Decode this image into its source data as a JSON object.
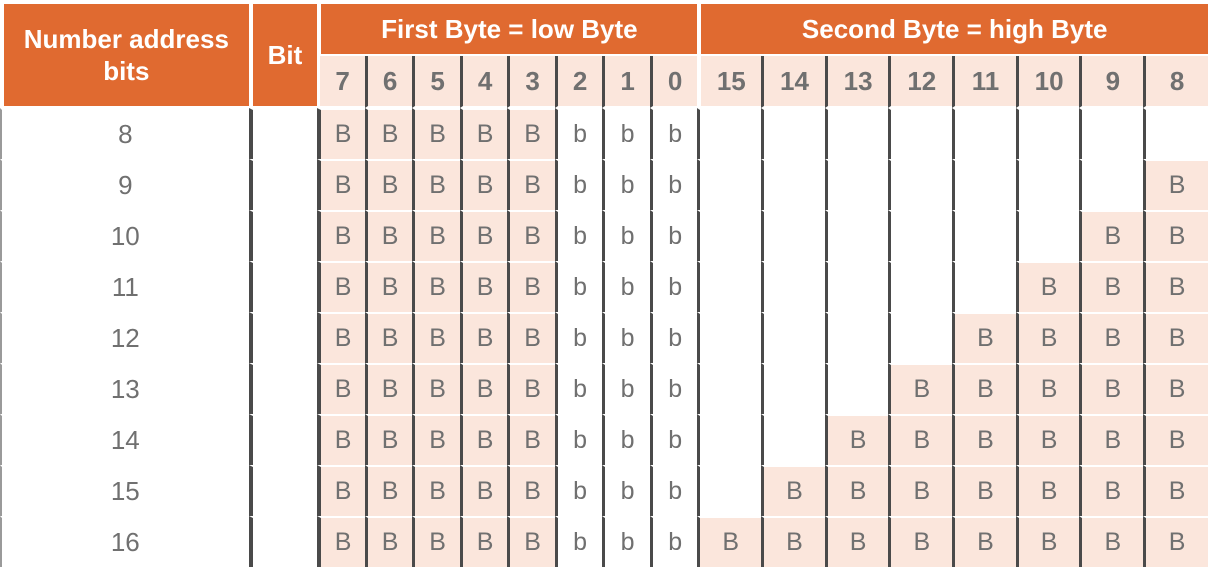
{
  "header": {
    "number_label": "Number address bits",
    "bit_label": "Bit",
    "first_byte": "First Byte = low Byte",
    "second_byte": "Second Byte = high Byte"
  },
  "bit_numbers": [
    "7",
    "6",
    "5",
    "4",
    "3",
    "2",
    "1",
    "0",
    "15",
    "14",
    "13",
    "12",
    "11",
    "10",
    "9",
    "8"
  ],
  "rows": [
    {
      "n": "8",
      "cells": [
        "B",
        "B",
        "B",
        "B",
        "B",
        "b",
        "b",
        "b",
        "",
        "",
        "",
        "",
        "",
        "",
        "",
        ""
      ]
    },
    {
      "n": "9",
      "cells": [
        "B",
        "B",
        "B",
        "B",
        "B",
        "b",
        "b",
        "b",
        "",
        "",
        "",
        "",
        "",
        "",
        "",
        "B"
      ]
    },
    {
      "n": "10",
      "cells": [
        "B",
        "B",
        "B",
        "B",
        "B",
        "b",
        "b",
        "b",
        "",
        "",
        "",
        "",
        "",
        "",
        "B",
        "B"
      ]
    },
    {
      "n": "11",
      "cells": [
        "B",
        "B",
        "B",
        "B",
        "B",
        "b",
        "b",
        "b",
        "",
        "",
        "",
        "",
        "",
        "B",
        "B",
        "B"
      ]
    },
    {
      "n": "12",
      "cells": [
        "B",
        "B",
        "B",
        "B",
        "B",
        "b",
        "b",
        "b",
        "",
        "",
        "",
        "",
        "B",
        "B",
        "B",
        "B"
      ]
    },
    {
      "n": "13",
      "cells": [
        "B",
        "B",
        "B",
        "B",
        "B",
        "b",
        "b",
        "b",
        "",
        "",
        "",
        "B",
        "B",
        "B",
        "B",
        "B"
      ]
    },
    {
      "n": "14",
      "cells": [
        "B",
        "B",
        "B",
        "B",
        "B",
        "b",
        "b",
        "b",
        "",
        "",
        "B",
        "B",
        "B",
        "B",
        "B",
        "B"
      ]
    },
    {
      "n": "15",
      "cells": [
        "B",
        "B",
        "B",
        "B",
        "B",
        "b",
        "b",
        "b",
        "",
        "B",
        "B",
        "B",
        "B",
        "B",
        "B",
        "B"
      ]
    },
    {
      "n": "16",
      "cells": [
        "B",
        "B",
        "B",
        "B",
        "B",
        "b",
        "b",
        "b",
        "B",
        "B",
        "B",
        "B",
        "B",
        "B",
        "B",
        "B"
      ]
    }
  ],
  "colors": {
    "header_bg": "#E06A30",
    "cell_fill": "#FBE6DC",
    "text": "#707070"
  }
}
